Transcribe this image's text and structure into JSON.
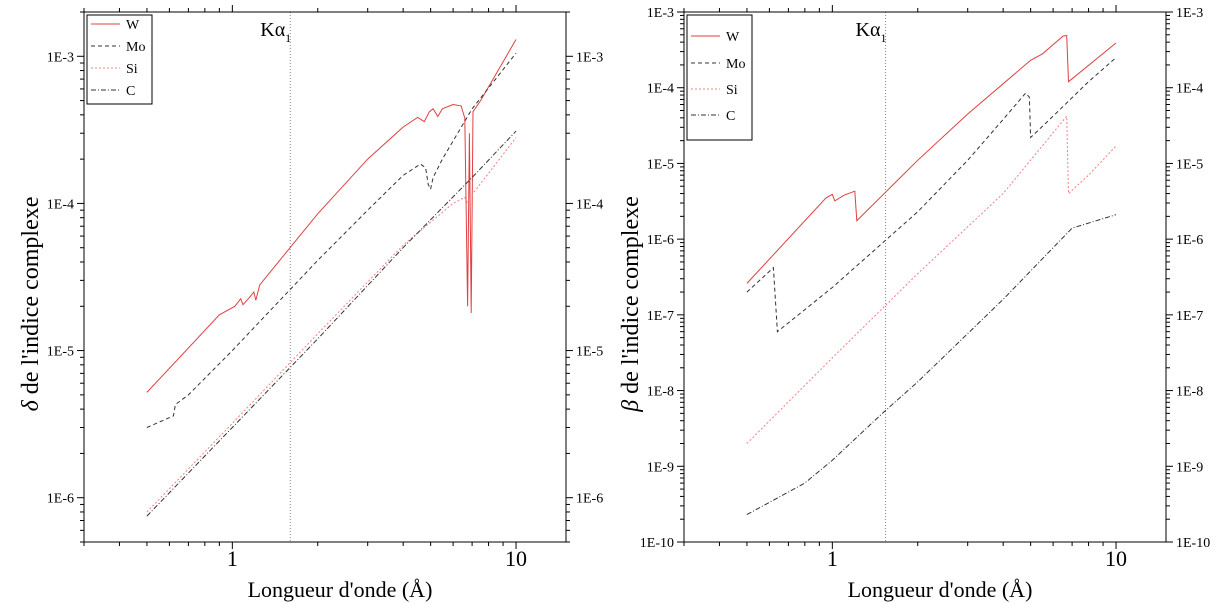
{
  "chart_data": [
    {
      "id": "delta",
      "type": "line",
      "xscale": "log",
      "yscale": "log",
      "xlim": [
        0.3,
        15
      ],
      "ylim": [
        5e-07,
        0.002
      ],
      "xlabel": "Longueur d'onde (Å)",
      "ylabel": "δ de l'indice complexe",
      "ylabel_symbol": "δ",
      "ylabel_text": " de l'indice complexe",
      "x_ticks": [
        "1",
        "10"
      ],
      "y_ticks": [
        "1E-6",
        "1E-5",
        "1E-4",
        "1E-3"
      ],
      "legend_position": "top-left",
      "annotation": {
        "text": "Kα",
        "subscript": "1",
        "x": 1.6
      },
      "series": [
        {
          "name": "W",
          "color": "#e04040",
          "dash": "none",
          "points": [
            [
              0.5,
              5.2e-06
            ],
            [
              0.9,
              1.75e-05
            ],
            [
              1.02,
              2e-05
            ],
            [
              1.07,
              2.25e-05
            ],
            [
              1.09,
              2.05e-05
            ],
            [
              1.15,
              2.3e-05
            ],
            [
              1.19,
              2.5e-05
            ],
            [
              1.21,
              2.2e-05
            ],
            [
              1.25,
              2.8e-05
            ],
            [
              2.0,
              8.5e-05
            ],
            [
              3.0,
              0.0002
            ],
            [
              4.0,
              0.00033
            ],
            [
              4.5,
              0.000385
            ],
            [
              4.75,
              0.00036
            ],
            [
              4.95,
              0.00042
            ],
            [
              5.1,
              0.00044
            ],
            [
              5.3,
              0.00039
            ],
            [
              5.5,
              0.00044
            ],
            [
              6.0,
              0.00047
            ],
            [
              6.4,
              0.00046
            ],
            [
              6.6,
              0.00038
            ],
            [
              6.75,
              2e-05
            ],
            [
              6.85,
              0.0003
            ],
            [
              6.95,
              1.8e-05
            ],
            [
              7.05,
              0.00042
            ],
            [
              7.5,
              0.0005
            ],
            [
              10.0,
              0.0013
            ]
          ]
        },
        {
          "name": "Mo",
          "color": "#333333",
          "dash": "4,3",
          "points": [
            [
              0.5,
              3e-06
            ],
            [
              0.58,
              3.4e-06
            ],
            [
              0.62,
              3.6e-06
            ],
            [
              0.63,
              4.3e-06
            ],
            [
              0.7,
              5e-06
            ],
            [
              1.0,
              1e-05
            ],
            [
              2.0,
              4.1e-05
            ],
            [
              3.0,
              9e-05
            ],
            [
              4.0,
              0.000155
            ],
            [
              4.6,
              0.000185
            ],
            [
              4.8,
              0.000175
            ],
            [
              4.9,
              0.000135
            ],
            [
              5.0,
              0.000125
            ],
            [
              5.1,
              0.00015
            ],
            [
              5.5,
              0.0002
            ],
            [
              7.0,
              0.00044
            ],
            [
              10.0,
              0.00105
            ]
          ]
        },
        {
          "name": "Si",
          "color": "#f08080",
          "dash": "2,2",
          "points": [
            [
              0.5,
              8e-07
            ],
            [
              1.0,
              3.2e-06
            ],
            [
              2.0,
              1.3e-05
            ],
            [
              4.0,
              5.2e-05
            ],
            [
              6.0,
              0.0001
            ],
            [
              6.6,
              0.00011
            ],
            [
              6.75,
              0.0001
            ],
            [
              7.0,
              0.000115
            ],
            [
              8.0,
              0.00016
            ],
            [
              10.0,
              0.00028
            ]
          ]
        },
        {
          "name": "C",
          "color": "#333333",
          "dash": "5,2,1,2",
          "points": [
            [
              0.5,
              7.5e-07
            ],
            [
              1.0,
              3e-06
            ],
            [
              2.0,
              1.2e-05
            ],
            [
              4.0,
              5e-05
            ],
            [
              7.0,
              0.00015
            ],
            [
              10.0,
              0.00031
            ]
          ]
        }
      ]
    },
    {
      "id": "beta",
      "type": "line",
      "xscale": "log",
      "yscale": "log",
      "xlim": [
        0.3,
        15
      ],
      "ylim": [
        1e-10,
        0.001
      ],
      "xlabel": "Longueur d'onde (Å)",
      "ylabel": "β de l'indice complexe",
      "ylabel_symbol": "β",
      "ylabel_text": " de l'indice complexe",
      "x_ticks": [
        "1",
        "10"
      ],
      "y_ticks": [
        "1E-10",
        "1E-9",
        "1E-8",
        "1E-7",
        "1E-6",
        "1E-5",
        "1E-4",
        "1E-3"
      ],
      "legend_position": "top-left",
      "annotation": {
        "text": "Kα",
        "subscript": "1",
        "x": 1.54
      },
      "series": [
        {
          "name": "W",
          "color": "#e04040",
          "dash": "none",
          "points": [
            [
              0.5,
              2.6e-07
            ],
            [
              0.95,
              3.5e-06
            ],
            [
              1.0,
              3.9e-06
            ],
            [
              1.02,
              3.2e-06
            ],
            [
              1.1,
              3.8e-06
            ],
            [
              1.2,
              4.3e-06
            ],
            [
              1.22,
              1.75e-06
            ],
            [
              2.0,
              1.1e-05
            ],
            [
              3.0,
              4.5e-05
            ],
            [
              5.0,
              0.00023
            ],
            [
              5.5,
              0.00028
            ],
            [
              6.5,
              0.00048
            ],
            [
              6.7,
              0.00049
            ],
            [
              6.8,
              0.00012
            ],
            [
              10.0,
              0.00039
            ]
          ]
        },
        {
          "name": "Mo",
          "color": "#333333",
          "dash": "4,3",
          "points": [
            [
              0.5,
              2e-07
            ],
            [
              0.62,
              4.2e-07
            ],
            [
              0.64,
              6e-08
            ],
            [
              1.0,
              2.3e-07
            ],
            [
              2.0,
              2.3e-06
            ],
            [
              3.0,
              1.1e-05
            ],
            [
              4.0,
              3.8e-05
            ],
            [
              4.8,
              8.5e-05
            ],
            [
              4.95,
              7.5e-05
            ],
            [
              5.0,
              2.2e-05
            ],
            [
              6.0,
              4.2e-05
            ],
            [
              8.0,
              0.00012
            ],
            [
              10.0,
              0.00025
            ]
          ]
        },
        {
          "name": "Si",
          "color": "#f08080",
          "dash": "2,2",
          "points": [
            [
              0.5,
              2e-09
            ],
            [
              1.0,
              2.7e-08
            ],
            [
              2.0,
              3.5e-07
            ],
            [
              4.0,
              4e-06
            ],
            [
              6.7,
              4.2e-05
            ],
            [
              6.8,
              4e-06
            ],
            [
              8.0,
              7e-06
            ],
            [
              10.0,
              1.7e-05
            ]
          ]
        },
        {
          "name": "C",
          "color": "#333333",
          "dash": "5,2,1,2",
          "points": [
            [
              0.5,
              2.3e-10
            ],
            [
              0.8,
              6e-10
            ],
            [
              1.0,
              1.2e-09
            ],
            [
              1.5,
              5e-09
            ],
            [
              2.0,
              1.3e-08
            ],
            [
              4.0,
              1.6e-07
            ],
            [
              7.0,
              1.4e-06
            ],
            [
              10.0,
              2.1e-06
            ]
          ]
        }
      ]
    }
  ]
}
